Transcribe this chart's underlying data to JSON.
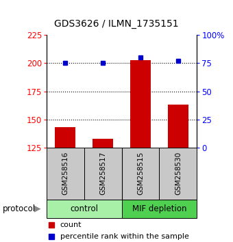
{
  "title": "GDS3626 / ILMN_1735151",
  "samples": [
    "GSM258516",
    "GSM258517",
    "GSM258515",
    "GSM258530"
  ],
  "counts": [
    143,
    133,
    203,
    163
  ],
  "percentile_ranks": [
    75,
    75,
    80,
    77
  ],
  "left_ylim": [
    125,
    225
  ],
  "left_yticks": [
    125,
    150,
    175,
    200,
    225
  ],
  "right_ylim": [
    0,
    100
  ],
  "right_yticks": [
    0,
    25,
    50,
    75,
    100
  ],
  "right_yticklabels": [
    "0",
    "25",
    "50",
    "75",
    "100%"
  ],
  "bar_color": "#CC0000",
  "dot_color": "#0000CC",
  "sample_box_color": "#C8C8C8",
  "control_color": "#A8F0A8",
  "mif_color": "#50D050",
  "bar_bottom": 125,
  "grid_yticks": [
    150,
    175,
    200
  ],
  "control_label": "control",
  "mif_label": "MIF depletion",
  "legend_count": "count",
  "legend_pct": "percentile rank within the sample",
  "protocol_label": "protocol"
}
